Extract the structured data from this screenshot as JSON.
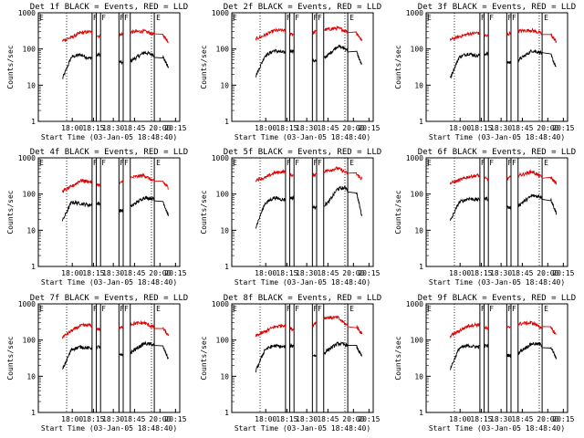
{
  "figure": {
    "xlabel": "Start Time (03-Jan-05 18:48:40)",
    "ylabel": "Counts/sec",
    "x_tick_labels": [
      "18:00",
      "18:15",
      "18:30",
      "18:45",
      "20:00",
      "20:15"
    ],
    "y_tick_labels": [
      "1",
      "10",
      "100",
      "1000"
    ],
    "flag_label": "F",
    "end_label": "E",
    "series_colors": {
      "events": "#000000",
      "lld": "#e00000"
    }
  },
  "chart_data": [
    {
      "type": "line",
      "title": "Det 1f BLACK = Events, RED = LLD",
      "yscale": "log",
      "ylim": [
        1,
        1000
      ],
      "series": [
        {
          "color": "#000000",
          "levels": [
            15,
            60,
            70,
            55,
            70,
            60,
            45,
            40,
            55,
            80,
            70,
            30
          ]
        },
        {
          "color": "#e00000",
          "levels": [
            170,
            210,
            280,
            300,
            230,
            190,
            230,
            280,
            300,
            310,
            260,
            160
          ]
        }
      ]
    },
    {
      "type": "line",
      "title": "Det 2f BLACK = Events, RED = LLD",
      "yscale": "log",
      "ylim": [
        1,
        1000
      ],
      "series": [
        {
          "color": "#000000",
          "levels": [
            18,
            65,
            90,
            80,
            90,
            80,
            50,
            45,
            70,
            120,
            100,
            35
          ]
        },
        {
          "color": "#e00000",
          "levels": [
            190,
            240,
            320,
            330,
            260,
            230,
            260,
            330,
            350,
            380,
            310,
            170
          ]
        }
      ]
    },
    {
      "type": "line",
      "title": "Det 3f BLACK = Events, RED = LLD",
      "yscale": "log",
      "ylim": [
        1,
        1000
      ],
      "series": [
        {
          "color": "#000000",
          "levels": [
            16,
            60,
            75,
            65,
            75,
            65,
            45,
            40,
            60,
            90,
            80,
            30
          ]
        },
        {
          "color": "#e00000",
          "levels": [
            180,
            220,
            260,
            280,
            230,
            200,
            230,
            300,
            320,
            330,
            270,
            160
          ]
        }
      ]
    },
    {
      "type": "line",
      "title": "Det 4f BLACK = Events, RED = LLD",
      "yscale": "log",
      "ylim": [
        1,
        1000
      ],
      "series": [
        {
          "color": "#000000",
          "levels": [
            18,
            60,
            55,
            50,
            55,
            50,
            35,
            35,
            55,
            80,
            75,
            25
          ]
        },
        {
          "color": "#e00000",
          "levels": [
            120,
            160,
            240,
            220,
            180,
            150,
            170,
            260,
            300,
            330,
            230,
            150
          ]
        }
      ]
    },
    {
      "type": "line",
      "title": "Det 5f BLACK = Events, RED = LLD",
      "yscale": "log",
      "ylim": [
        1,
        1000
      ],
      "series": [
        {
          "color": "#000000",
          "levels": [
            12,
            55,
            80,
            70,
            80,
            75,
            45,
            40,
            60,
            140,
            150,
            25
          ]
        },
        {
          "color": "#e00000",
          "levels": [
            250,
            280,
            380,
            420,
            330,
            290,
            300,
            400,
            450,
            520,
            380,
            260
          ]
        }
      ]
    },
    {
      "type": "line",
      "title": "Det 6f BLACK = Events, RED = LLD",
      "yscale": "log",
      "ylim": [
        1,
        1000
      ],
      "series": [
        {
          "color": "#000000",
          "levels": [
            18,
            60,
            75,
            70,
            75,
            65,
            45,
            40,
            60,
            90,
            85,
            30
          ]
        },
        {
          "color": "#e00000",
          "levels": [
            200,
            240,
            300,
            330,
            260,
            220,
            250,
            310,
            350,
            420,
            300,
            200
          ]
        }
      ]
    },
    {
      "type": "line",
      "title": "Det 7f BLACK = Events, RED = LLD",
      "yscale": "log",
      "ylim": [
        1,
        1000
      ],
      "series": [
        {
          "color": "#000000",
          "levels": [
            15,
            55,
            65,
            60,
            65,
            60,
            40,
            35,
            55,
            80,
            75,
            30
          ]
        },
        {
          "color": "#e00000",
          "levels": [
            120,
            180,
            250,
            260,
            200,
            170,
            190,
            260,
            290,
            300,
            230,
            130
          ]
        }
      ]
    },
    {
      "type": "line",
      "title": "Det 8f BLACK = Events, RED = LLD",
      "yscale": "log",
      "ylim": [
        1,
        1000
      ],
      "series": [
        {
          "color": "#000000",
          "levels": [
            14,
            55,
            70,
            65,
            70,
            60,
            40,
            35,
            55,
            80,
            75,
            35
          ]
        },
        {
          "color": "#e00000",
          "levels": [
            130,
            170,
            230,
            260,
            200,
            180,
            210,
            400,
            420,
            420,
            260,
            150
          ]
        }
      ]
    },
    {
      "type": "line",
      "title": "Det 9f BLACK = Events, RED = LLD",
      "yscale": "log",
      "ylim": [
        1,
        1000
      ],
      "series": [
        {
          "color": "#000000",
          "levels": [
            16,
            60,
            70,
            65,
            70,
            60,
            40,
            35,
            55,
            80,
            75,
            30
          ]
        },
        {
          "color": "#e00000",
          "levels": [
            130,
            180,
            250,
            270,
            210,
            180,
            200,
            260,
            290,
            300,
            230,
            140
          ]
        }
      ]
    }
  ]
}
